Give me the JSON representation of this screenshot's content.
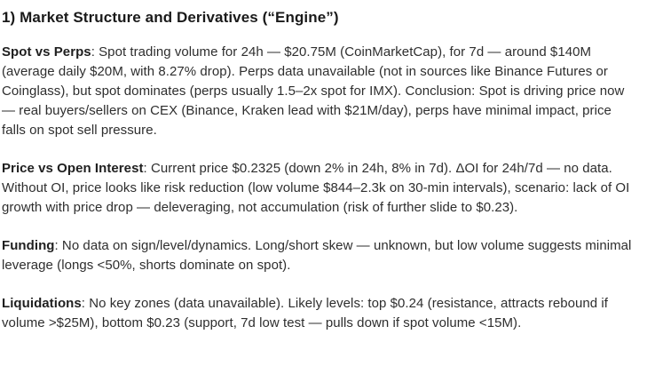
{
  "heading": "1) Market Structure and Derivatives (“Engine”)",
  "colors": {
    "background": "#ffffff",
    "heading_text": "#1a1a1a",
    "body_text": "#2e2e2e"
  },
  "paragraphs": [
    {
      "label": "Spot vs Perps",
      "text": ": Spot trading volume for 24h — $20.75M (CoinMarketCap), for 7d — around $140M (average daily $20M, with 8.27% drop). Perps data unavailable (not in sources like Binance Futures or Coinglass), but spot dominates (perps usually 1.5–2x spot for IMX). Conclusion: Spot is driving price now — real buyers/sellers on CEX (Binance, Kraken lead with $21M/day), perps have minimal impact, price falls on spot sell pressure."
    },
    {
      "label": "Price vs Open Interest",
      "text": ": Current price $0.2325 (down 2% in 24h, 8% in 7d). ΔOI for 24h/7d — no data. Without OI, price looks like risk reduction (low volume $844–2.3k on 30-min intervals), scenario: lack of OI growth with price drop — deleveraging, not accumulation (risk of further slide to $0.23)."
    },
    {
      "label": "Funding",
      "text": ": No data on sign/level/dynamics. Long/short skew — unknown, but low volume suggests minimal leverage (longs <50%, shorts dominate on spot)."
    },
    {
      "label": "Liquidations",
      "text": ": No key zones (data unavailable). Likely levels: top $0.24 (resistance, attracts rebound if volume >$25M), bottom $0.23 (support, 7d low test — pulls down if spot volume <15M)."
    }
  ]
}
